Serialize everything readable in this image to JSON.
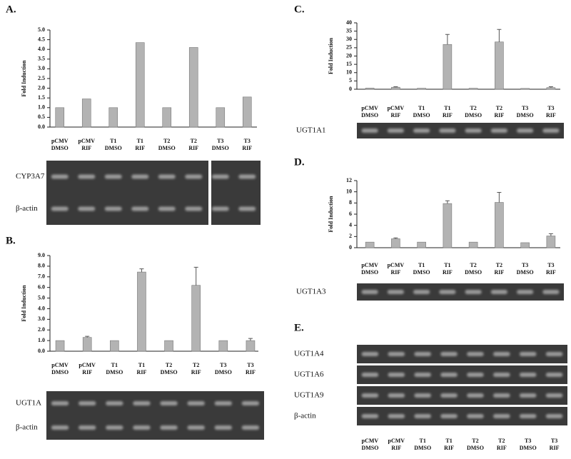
{
  "chart_data": [
    {
      "type": "bar",
      "panel": "A.",
      "ylabel": "Fold Induction",
      "categories": [
        [
          "pCMV",
          "DMSO"
        ],
        [
          "pCMV",
          "RIF"
        ],
        [
          "T1",
          "DMSO"
        ],
        [
          "T1",
          "RIF"
        ],
        [
          "T2",
          "DMSO"
        ],
        [
          "T2",
          "RIF"
        ],
        [
          "T3",
          "DMSO"
        ],
        [
          "T3",
          "RIF"
        ]
      ],
      "values": [
        1.0,
        1.45,
        1.0,
        4.35,
        1.0,
        4.1,
        1.0,
        1.55
      ],
      "color": "#b3b3b3",
      "ylim": [
        0,
        5
      ],
      "yticks": [
        {
          "value": 0,
          "label": "0.0"
        },
        {
          "value": 0.5,
          "label": "0.5"
        },
        {
          "value": 1,
          "label": "1.0"
        },
        {
          "value": 1.5,
          "label": "1.5"
        },
        {
          "value": 2,
          "label": "2.0"
        },
        {
          "value": 2.5,
          "label": "2.5"
        },
        {
          "value": 3,
          "label": "3.0"
        },
        {
          "value": 3.5,
          "label": "3.5"
        },
        {
          "value": 4,
          "label": "4.0"
        },
        {
          "value": 4.5,
          "label": "4.5"
        },
        {
          "value": 5,
          "label": "5.0"
        }
      ],
      "gel_labels": [
        "CYP3A7",
        "β-actin"
      ]
    },
    {
      "type": "bar",
      "panel": "B.",
      "ylabel": "Fold Induction",
      "categories": [
        [
          "pCMV",
          "DMSO"
        ],
        [
          "pCMV",
          "RIF"
        ],
        [
          "T1",
          "DMSO"
        ],
        [
          "T1",
          "RIF"
        ],
        [
          "T2",
          "DMSO"
        ],
        [
          "T2",
          "RIF"
        ],
        [
          "T3",
          "DMSO"
        ],
        [
          "T3",
          "RIF"
        ]
      ],
      "values": [
        1.0,
        1.3,
        1.0,
        7.45,
        1.0,
        6.2,
        1.0,
        1.0
      ],
      "errors": [
        null,
        0.1,
        null,
        0.3,
        null,
        1.7,
        null,
        0.2
      ],
      "color": "#b3b3b3",
      "ylim": [
        0,
        9
      ],
      "yticks": [
        {
          "value": 0,
          "label": "0.0"
        },
        {
          "value": 1,
          "label": "1.0"
        },
        {
          "value": 2,
          "label": "2.0"
        },
        {
          "value": 3,
          "label": "3.0"
        },
        {
          "value": 4,
          "label": "4.0"
        },
        {
          "value": 5,
          "label": "5.0"
        },
        {
          "value": 6,
          "label": "6.0"
        },
        {
          "value": 7,
          "label": "7.0"
        },
        {
          "value": 8,
          "label": "8.0"
        },
        {
          "value": 9,
          "label": "9.0"
        }
      ],
      "gel_labels": [
        "UGT1A",
        "β-actin"
      ]
    },
    {
      "type": "bar",
      "panel": "C.",
      "ylabel": "Fold Induction",
      "categories": [
        [
          "pCMV",
          "DMSO"
        ],
        [
          "pCMV",
          "RIF"
        ],
        [
          "T1",
          "DMSO"
        ],
        [
          "T1",
          "RIF"
        ],
        [
          "T2",
          "DMSO"
        ],
        [
          "T2",
          "RIF"
        ],
        [
          "T3",
          "DMSO"
        ],
        [
          "T3",
          "RIF"
        ]
      ],
      "values": [
        0.7,
        1.2,
        0.6,
        27,
        0.6,
        28.5,
        0.5,
        1.0
      ],
      "errors": [
        null,
        0.3,
        null,
        6,
        null,
        7.5,
        null,
        0.5
      ],
      "color": "#b3b3b3",
      "ylim": [
        0,
        40
      ],
      "yticks": [
        0,
        5,
        10,
        15,
        20,
        25,
        30,
        35,
        40
      ],
      "gel_labels": [
        "UGT1A1"
      ]
    },
    {
      "type": "bar",
      "panel": "D.",
      "ylabel": "Fold Induction",
      "categories": [
        [
          "pCMV",
          "DMSO"
        ],
        [
          "pCMV",
          "RIF"
        ],
        [
          "T1",
          "DMSO"
        ],
        [
          "T1",
          "RIF"
        ],
        [
          "T2",
          "DMSO"
        ],
        [
          "T2",
          "RIF"
        ],
        [
          "T3",
          "DMSO"
        ],
        [
          "T3",
          "RIF"
        ]
      ],
      "values": [
        1.0,
        1.6,
        1.0,
        7.9,
        1.0,
        8.1,
        0.9,
        2.1
      ],
      "errors": [
        null,
        0.15,
        null,
        0.5,
        null,
        1.8,
        null,
        0.4
      ],
      "color": "#b3b3b3",
      "ylim": [
        0,
        12
      ],
      "yticks": [
        0,
        2,
        4,
        6,
        8,
        10,
        12
      ],
      "gel_labels": [
        "UGT1A3"
      ]
    },
    {
      "type": "gel",
      "panel": "E.",
      "categories": [
        [
          "pCMV",
          "DMSO"
        ],
        [
          "pCMV",
          "RIF"
        ],
        [
          "T1",
          "DMSO"
        ],
        [
          "T1",
          "RIF"
        ],
        [
          "T2",
          "DMSO"
        ],
        [
          "T2",
          "RIF"
        ],
        [
          "T3",
          "DMSO"
        ],
        [
          "T3",
          "RIF"
        ]
      ],
      "gel_labels": [
        "UGT1A4",
        "UGT1A6",
        "UGT1A9",
        "β-actin"
      ]
    }
  ]
}
